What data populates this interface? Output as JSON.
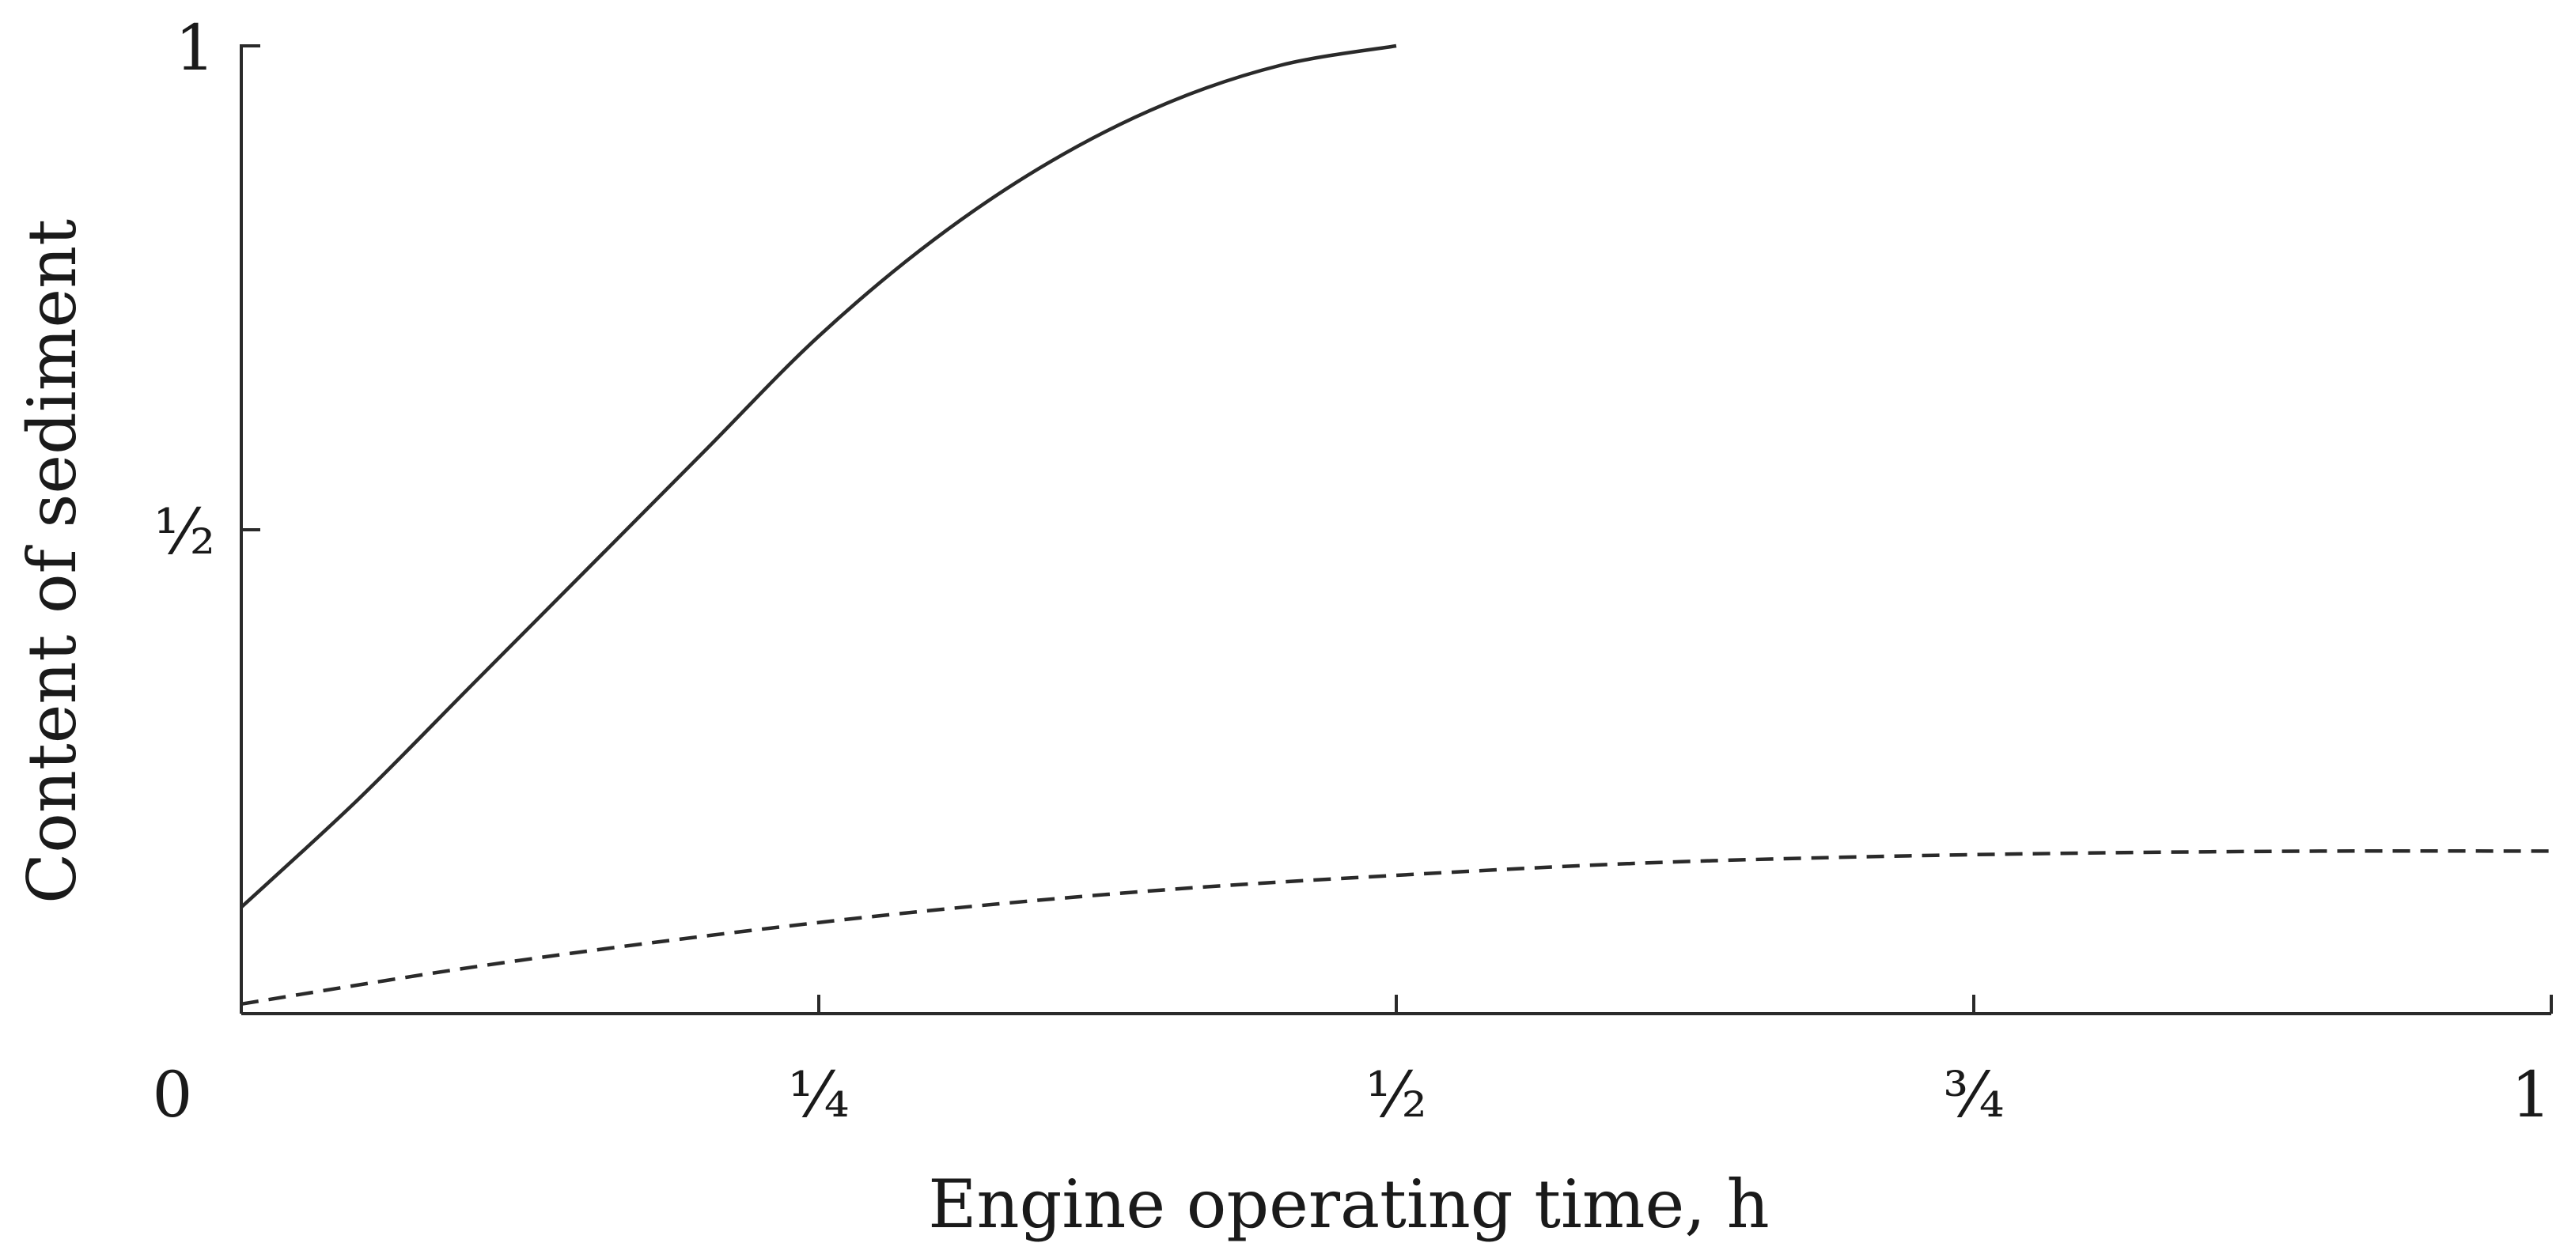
{
  "chart_data": {
    "type": "line",
    "xlabel": "Engine operating time, h",
    "ylabel": "Content of sediment",
    "xlim": [
      0,
      1
    ],
    "ylim": [
      0,
      1
    ],
    "grid": false,
    "x_ticks": [
      {
        "value": 0,
        "label": "0"
      },
      {
        "value": 0.25,
        "label": "¼"
      },
      {
        "value": 0.5,
        "label": "½"
      },
      {
        "value": 0.75,
        "label": "¾"
      },
      {
        "value": 1,
        "label": "1"
      }
    ],
    "y_ticks": [
      {
        "value": 0.5,
        "label": "½"
      },
      {
        "value": 1,
        "label": "1"
      }
    ],
    "series": [
      {
        "style": "solid",
        "x": [
          0,
          0.05,
          0.1,
          0.15,
          0.2,
          0.25,
          0.3,
          0.35,
          0.4,
          0.45,
          0.5
        ],
        "y": [
          0.11,
          0.22,
          0.34,
          0.46,
          0.58,
          0.7,
          0.8,
          0.88,
          0.94,
          0.98,
          1.0
        ]
      },
      {
        "style": "dashed",
        "x": [
          0,
          0.1,
          0.2,
          0.3,
          0.4,
          0.5,
          0.6,
          0.7,
          0.8,
          0.9,
          1.0
        ],
        "y": [
          0.01,
          0.048,
          0.08,
          0.107,
          0.128,
          0.143,
          0.155,
          0.162,
          0.166,
          0.168,
          0.168
        ]
      }
    ]
  }
}
